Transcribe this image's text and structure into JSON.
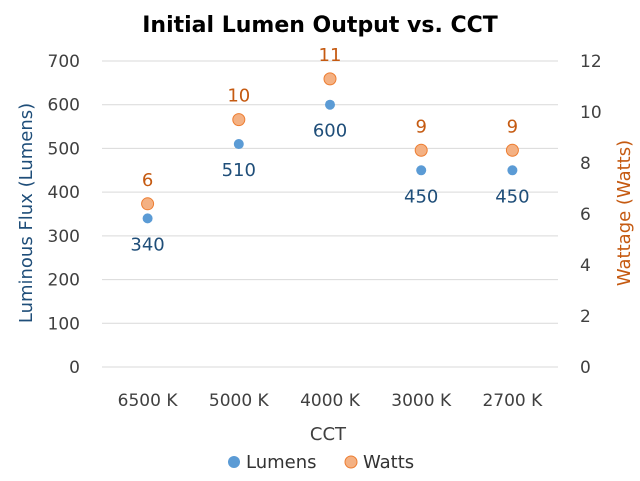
{
  "chart_data": {
    "type": "scatter",
    "title": "Initial Lumen Output vs. CCT",
    "xlabel": "CCT",
    "ylabel": "Luminous Flux (Lumens)",
    "y2label": "Wattage (Watts)",
    "categories": [
      "6500 K",
      "5000 K",
      "4000 K",
      "3000 K",
      "2700 K"
    ],
    "ylim": [
      0,
      700
    ],
    "y2lim": [
      0,
      12
    ],
    "yticks": [
      "0",
      "100",
      "200",
      "300",
      "400",
      "500",
      "600",
      "700"
    ],
    "y2ticks": [
      "0",
      "2",
      "4",
      "6",
      "8",
      "10",
      "12"
    ],
    "grid": true,
    "legend": "bottom",
    "series": [
      {
        "name": "Lumens",
        "axis": "left",
        "values": [
          340,
          510,
          600,
          450,
          450
        ],
        "labels": [
          "340",
          "510",
          "600",
          "450",
          "450"
        ],
        "label_position": "below",
        "color": "#5b9bd5",
        "label_color": "#1f4e79"
      },
      {
        "name": "Watts",
        "axis": "right",
        "values": [
          6.4,
          9.7,
          11.3,
          8.5,
          8.5
        ],
        "labels": [
          "6",
          "10",
          "11",
          "9",
          "9"
        ],
        "label_position": "above",
        "color": "#f4b183",
        "label_color": "#c55a11"
      }
    ],
    "colors": {
      "ylabel": "#1f4e79",
      "y2label": "#c55a11",
      "grid": "#d9d9d9",
      "tick": "#404040"
    }
  }
}
